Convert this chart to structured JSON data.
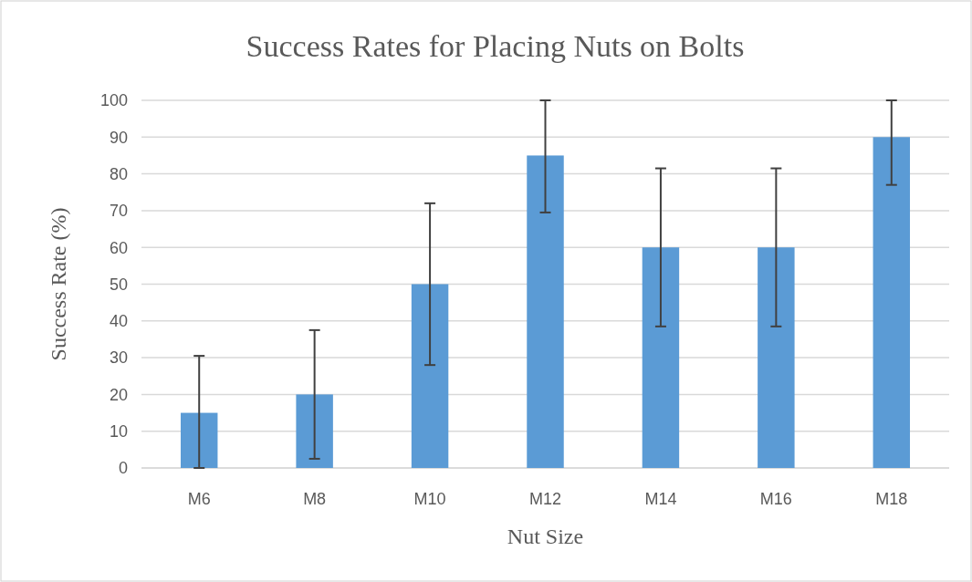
{
  "chart_data": {
    "type": "bar",
    "title": "Success Rates for Placing Nuts on Bolts",
    "xlabel": "Nut Size",
    "ylabel": "Success Rate (%)",
    "categories": [
      "M6",
      "M8",
      "M10",
      "M12",
      "M14",
      "M16",
      "M18"
    ],
    "values": [
      15,
      20,
      50,
      85,
      60,
      60,
      90
    ],
    "errors": [
      [
        0,
        30.5
      ],
      [
        2.5,
        37.5
      ],
      [
        28,
        72
      ],
      [
        69.5,
        100
      ],
      [
        38.5,
        81.5
      ],
      [
        38.5,
        81.5
      ],
      [
        77,
        100
      ]
    ],
    "color": "#5b9bd5",
    "ylim": [
      0,
      100
    ],
    "yticks": [
      0,
      10,
      20,
      30,
      40,
      50,
      60,
      70,
      80,
      90,
      100
    ],
    "grid": "y"
  }
}
